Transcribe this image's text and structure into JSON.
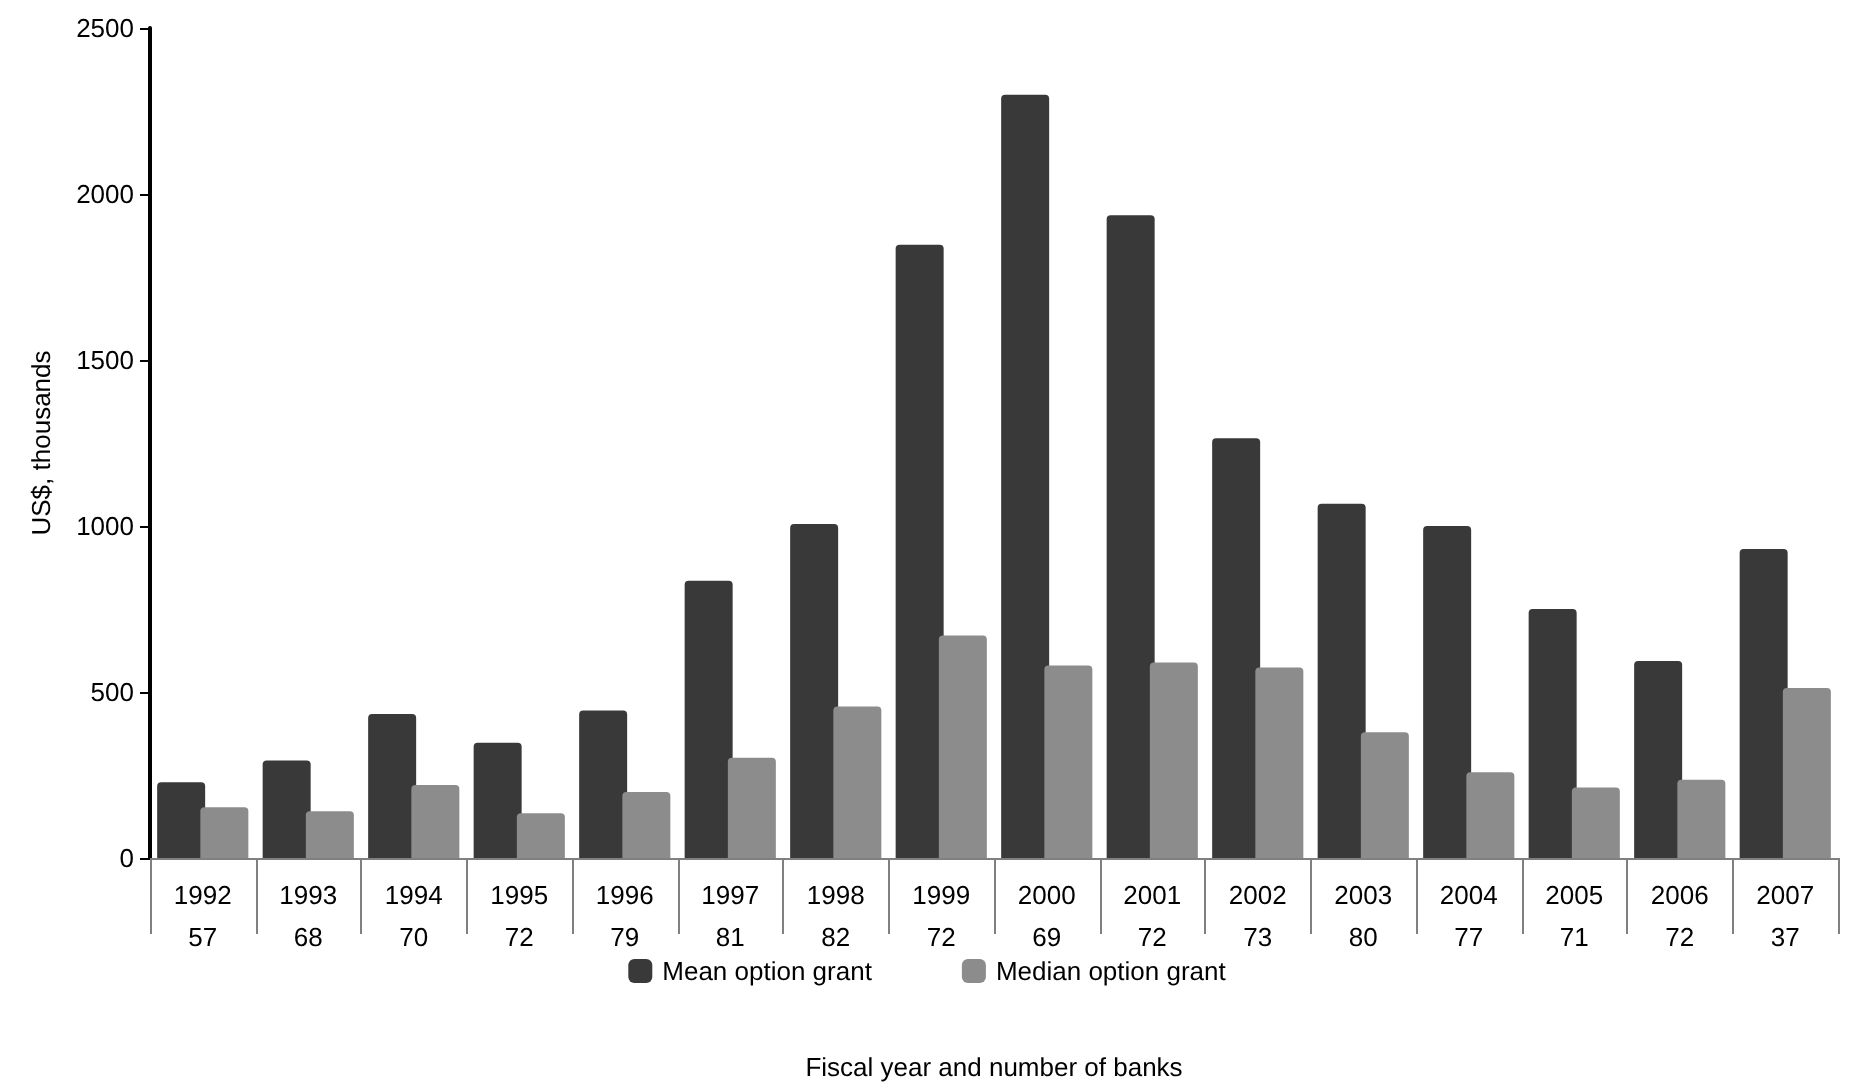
{
  "chart_data": {
    "type": "bar",
    "xlabel": "Fiscal year and number of banks",
    "ylabel": "US$, thousands",
    "categories": [
      "1992\n57",
      "1993\n68",
      "1994\n70",
      "1995\n72",
      "1996\n79",
      "1997\n81",
      "1998\n82",
      "1999\n72",
      "2000\n69",
      "2001\n72",
      "2002\n73",
      "2003\n80",
      "2004\n77",
      "2005\n71",
      "2006\n72",
      "2007\n37"
    ],
    "series": [
      {
        "name": "Mean option grant",
        "color": "#393939",
        "values": [
          228,
          294,
          434,
          347,
          444,
          835,
          1006,
          1847,
          2299,
          1936,
          1264,
          1067,
          1000,
          750,
          593,
          931
        ]
      },
      {
        "name": "Median option grant",
        "color": "#8c8c8c",
        "values": [
          153,
          141,
          220,
          135,
          199,
          302,
          456,
          670,
          580,
          589,
          574,
          379,
          258,
          212,
          236,
          512
        ]
      }
    ],
    "ylim": [
      0,
      2500
    ],
    "yticks": [
      0,
      500,
      1000,
      1500,
      2000,
      2500
    ],
    "grid": false,
    "legend": "bottom"
  }
}
